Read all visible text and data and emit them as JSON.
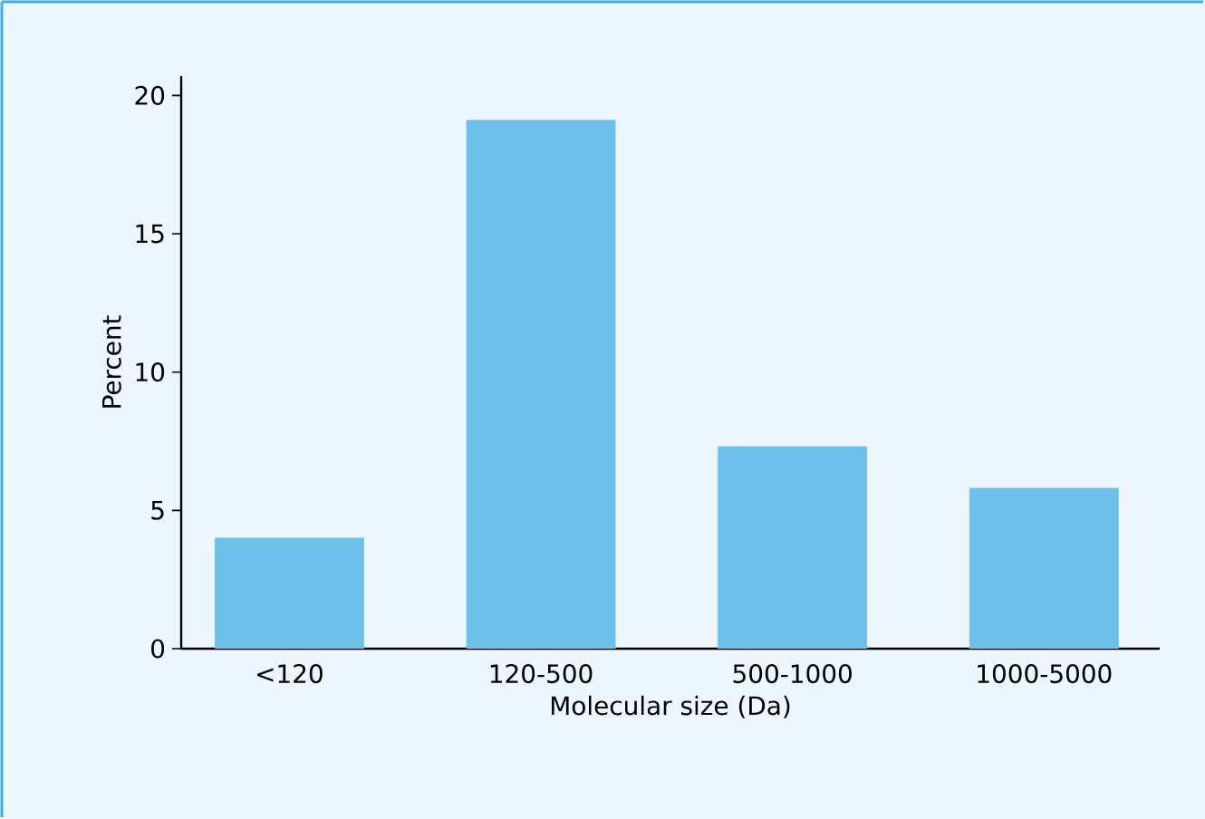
{
  "chart_data": {
    "type": "bar",
    "xlabel": "Molecular size (Da)",
    "ylabel": "Percent",
    "categories": [
      "<120",
      "120-500",
      "500-1000",
      "1000-5000"
    ],
    "values": [
      4.0,
      19.1,
      7.3,
      5.8
    ],
    "color": "#6cc0ea",
    "ylim": [
      0,
      20.7
    ],
    "yticks": [
      0,
      5,
      10,
      15,
      20
    ]
  }
}
